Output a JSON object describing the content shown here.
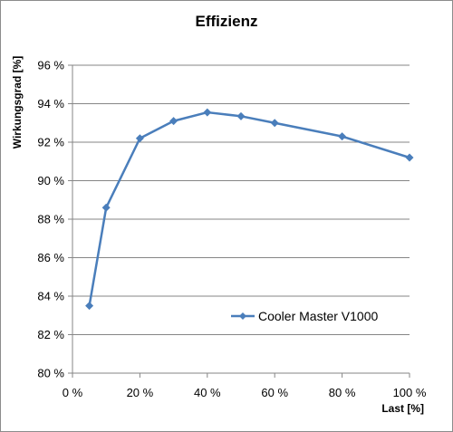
{
  "chart_data": {
    "type": "line",
    "title": "Effizienz",
    "xlabel": "Last [%]",
    "ylabel": "Wirkungsgrad [%]",
    "xlim": [
      0,
      100
    ],
    "ylim": [
      80,
      96
    ],
    "x_ticks": [
      0,
      20,
      40,
      60,
      80,
      100
    ],
    "x_tick_labels": [
      "0 %",
      "20 %",
      "40 %",
      "60 %",
      "80 %",
      "100 %"
    ],
    "y_ticks": [
      80,
      82,
      84,
      86,
      88,
      90,
      92,
      94,
      96
    ],
    "y_tick_labels": [
      "80 %",
      "82 %",
      "84 %",
      "86 %",
      "88 %",
      "90 %",
      "92 %",
      "94 %",
      "96 %"
    ],
    "grid": "horizontal",
    "legend_position": "bottom-right inside plot",
    "series": [
      {
        "name": "Cooler Master V1000",
        "color": "#4a7ebb",
        "marker": "diamond",
        "x": [
          5,
          10,
          20,
          30,
          40,
          50,
          60,
          80,
          100
        ],
        "y": [
          83.5,
          88.6,
          92.2,
          93.1,
          93.55,
          93.35,
          93.0,
          92.3,
          91.2
        ]
      }
    ]
  }
}
